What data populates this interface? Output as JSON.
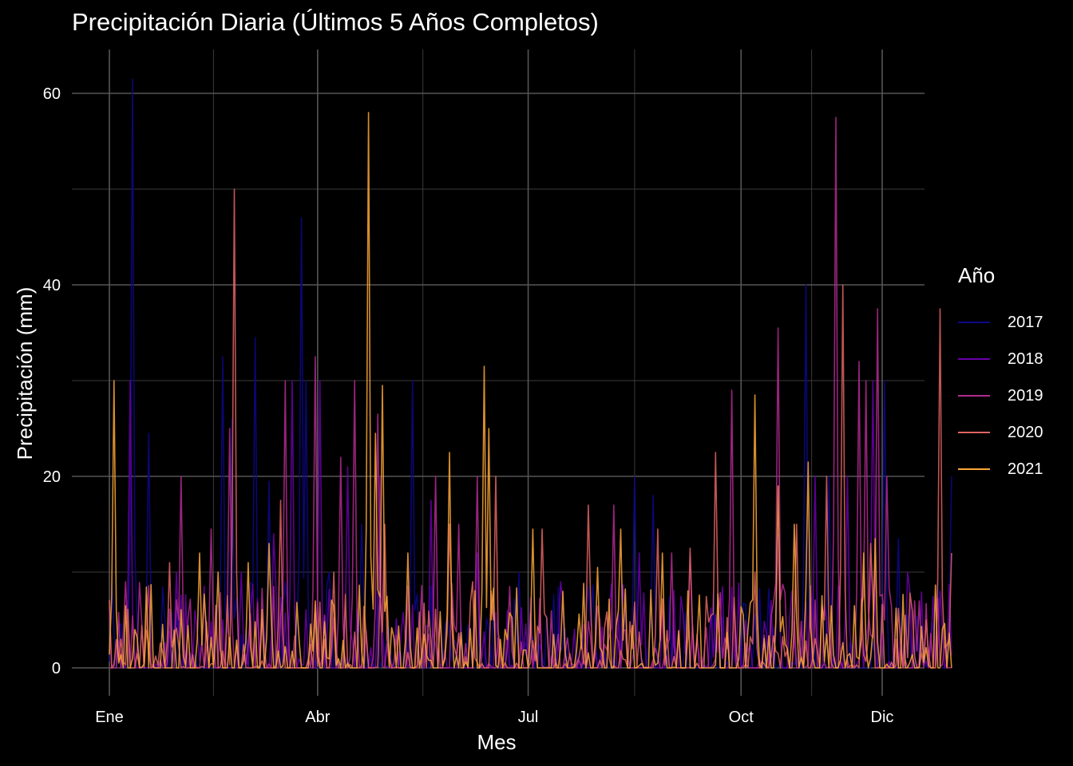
{
  "chart_data": {
    "type": "line",
    "title": "Precipitación Diaria (Últimos 5 Años Completos)",
    "xlabel": "Mes",
    "ylabel": "Precipitación (mm)",
    "x_unit": "day of year",
    "xlim": [
      1,
      365
    ],
    "ylim": [
      -4,
      65
    ],
    "x_ticks": [
      {
        "label": "Ene",
        "day": 1
      },
      {
        "label": "Abr",
        "day": 91
      },
      {
        "label": "Jul",
        "day": 182
      },
      {
        "label": "Oct",
        "day": 274
      },
      {
        "label": "Dic",
        "day": 335
      }
    ],
    "y_ticks": [
      0,
      20,
      40,
      60
    ],
    "grid": true,
    "legend": {
      "title": "Año",
      "position": "right"
    },
    "series": [
      {
        "name": "2017",
        "color": "#0d0887",
        "peaks": [
          [
            11,
            61.5
          ],
          [
            18,
            24.5
          ],
          [
            50,
            32.5
          ],
          [
            54,
            26
          ],
          [
            64,
            34.5
          ],
          [
            70,
            19.5
          ],
          [
            84,
            47
          ],
          [
            86,
            30
          ],
          [
            96,
            10
          ],
          [
            110,
            15
          ],
          [
            132,
            30
          ],
          [
            178,
            10
          ],
          [
            210,
            8
          ],
          [
            228,
            20
          ],
          [
            236,
            18
          ],
          [
            302,
            40
          ],
          [
            312,
            20
          ],
          [
            336,
            30
          ],
          [
            342,
            13.5
          ],
          [
            365,
            20
          ]
        ]
      },
      {
        "name": "2018",
        "color": "#6a00a8",
        "peaks": [
          [
            4,
            2
          ],
          [
            10,
            30
          ],
          [
            30,
            10
          ],
          [
            58,
            10
          ],
          [
            72,
            14
          ],
          [
            80,
            30
          ],
          [
            92,
            30
          ],
          [
            104,
            21
          ],
          [
            118,
            20
          ],
          [
            140,
            17.5
          ],
          [
            160,
            12
          ],
          [
            196,
            9
          ],
          [
            230,
            12
          ],
          [
            252,
            12
          ],
          [
            290,
            14
          ],
          [
            306,
            20
          ],
          [
            320,
            20
          ],
          [
            331,
            30
          ],
          [
            346,
            10
          ],
          [
            360,
            8
          ]
        ]
      },
      {
        "name": "2019",
        "color": "#b12a90",
        "peaks": [
          [
            8,
            9
          ],
          [
            14,
            7.5
          ],
          [
            32,
            20
          ],
          [
            45,
            14.5
          ],
          [
            53,
            25
          ],
          [
            77,
            30
          ],
          [
            90,
            32.5
          ],
          [
            101,
            22
          ],
          [
            107,
            30
          ],
          [
            117,
            26.5
          ],
          [
            142,
            20
          ],
          [
            152,
            15
          ],
          [
            160,
            20
          ],
          [
            174,
            8.5
          ],
          [
            219,
            17
          ],
          [
            244,
            12
          ],
          [
            270,
            29
          ],
          [
            290,
            35.5
          ],
          [
            315,
            57.5
          ],
          [
            325,
            32
          ],
          [
            328,
            30
          ],
          [
            333,
            37.5
          ],
          [
            337,
            20
          ],
          [
            351,
            7
          ]
        ]
      },
      {
        "name": "2020",
        "color": "#e16462",
        "peaks": [
          [
            6,
            3
          ],
          [
            27,
            11
          ],
          [
            55,
            50
          ],
          [
            75,
            17.5
          ],
          [
            98,
            10
          ],
          [
            120,
            15
          ],
          [
            148,
            15
          ],
          [
            168,
            20
          ],
          [
            188,
            14.5
          ],
          [
            208,
            17
          ],
          [
            238,
            14.5
          ],
          [
            252,
            12.5
          ],
          [
            263,
            22.5
          ],
          [
            280,
            10
          ],
          [
            298,
            15
          ],
          [
            311,
            20
          ],
          [
            318,
            40
          ],
          [
            330,
            13
          ],
          [
            348,
            6
          ],
          [
            360,
            37.5
          ],
          [
            365,
            12
          ]
        ]
      },
      {
        "name": "2021",
        "color": "#fca636",
        "peaks": [
          [
            3,
            30
          ],
          [
            12,
            4
          ],
          [
            40,
            12
          ],
          [
            48,
            10
          ],
          [
            61,
            11
          ],
          [
            70,
            13
          ],
          [
            90,
            7
          ],
          [
            113,
            58
          ],
          [
            116,
            24.5
          ],
          [
            119,
            29.5
          ],
          [
            130,
            12
          ],
          [
            148,
            22.5
          ],
          [
            163,
            31.5
          ],
          [
            165,
            25
          ],
          [
            184,
            14.5
          ],
          [
            197,
            8
          ],
          [
            212,
            10.5
          ],
          [
            222,
            14.5
          ],
          [
            240,
            12
          ],
          [
            280,
            28.5
          ],
          [
            290,
            19
          ],
          [
            297,
            15
          ],
          [
            303,
            21.5
          ],
          [
            327,
            12
          ],
          [
            332,
            13.5
          ]
        ]
      }
    ]
  }
}
